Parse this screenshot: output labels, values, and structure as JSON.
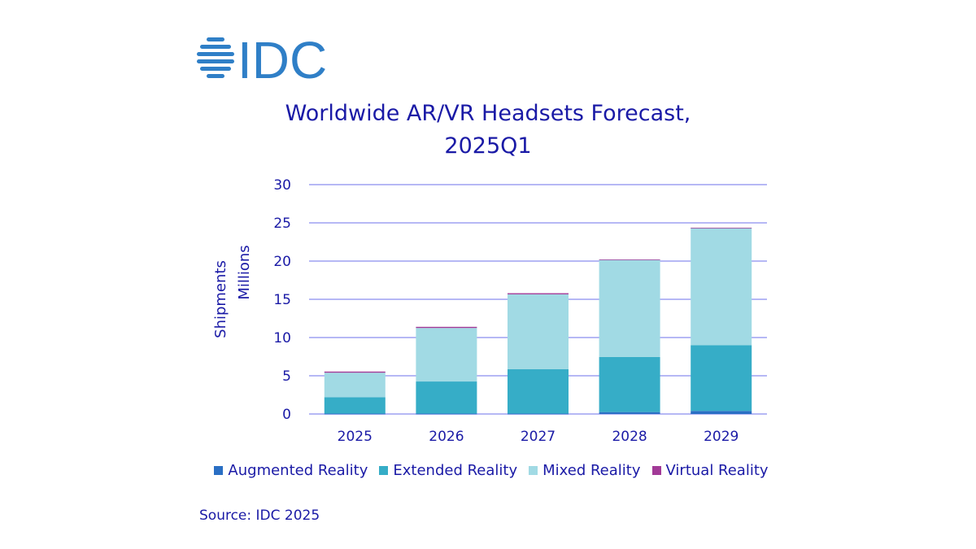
{
  "logo_text": "IDC",
  "source": "Source: IDC 2025",
  "colors": {
    "brand": "#2f7fc7",
    "text": "#1a1aa6",
    "grid": "#b6b8f5"
  },
  "chart_data": {
    "type": "bar",
    "stacked": true,
    "title_line1": "Worldwide AR/VR Headsets Forecast,",
    "title_line2": "2025Q1",
    "ylabel_line1": "Shipments",
    "ylabel_line2": "Millions",
    "xlabel": "",
    "ylim": [
      0,
      30
    ],
    "yticks": [
      "0",
      "5",
      "10",
      "15",
      "20",
      "25",
      "30"
    ],
    "categories": [
      "2025",
      "2026",
      "2027",
      "2028",
      "2029"
    ],
    "grid": true,
    "legend_position": "bottom",
    "series": [
      {
        "name": "Augmented Reality",
        "color": "#2a6fc4",
        "values": [
          0.05,
          0.05,
          0.05,
          0.25,
          0.4
        ]
      },
      {
        "name": "Extended Reality",
        "color": "#36adc7",
        "values": [
          2.15,
          4.2,
          5.8,
          7.2,
          8.6
        ]
      },
      {
        "name": "Mixed Reality",
        "color": "#a1dae4",
        "values": [
          3.2,
          7.0,
          9.8,
          12.75,
          15.35
        ]
      },
      {
        "name": "Virtual Reality",
        "color": "#a23a97",
        "values": [
          0.15,
          0.15,
          0.15,
          0.02,
          0.02
        ]
      }
    ]
  }
}
